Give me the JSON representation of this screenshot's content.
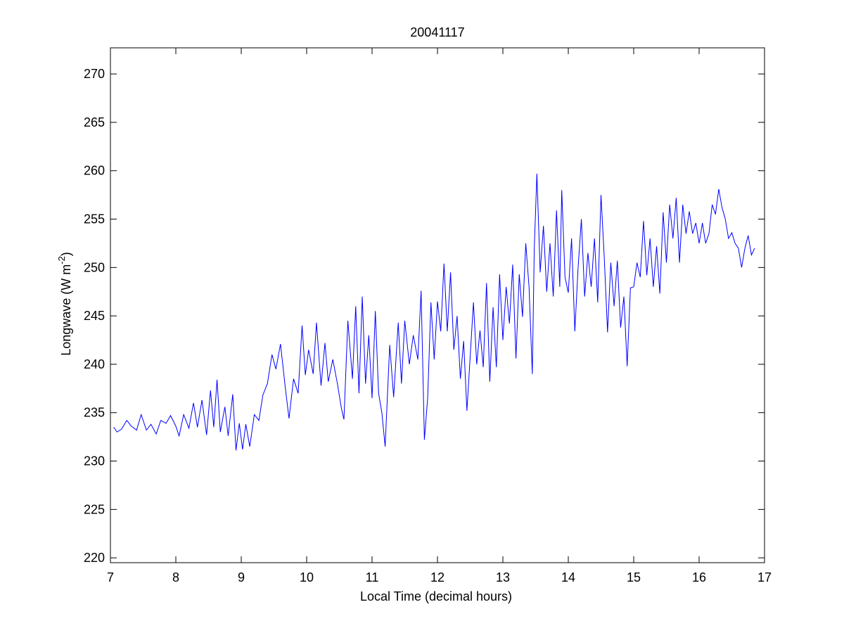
{
  "chart_data": {
    "type": "line",
    "title": "20041117",
    "xlabel": "Local Time (decimal hours)",
    "ylabel": [
      "Longwave (W m",
      "-2",
      ")"
    ],
    "xlim": [
      7,
      17
    ],
    "xticks": [
      7,
      8,
      9,
      10,
      11,
      12,
      13,
      14,
      15,
      16,
      17
    ],
    "ylim": [
      219.5,
      272.7
    ],
    "yticks": [
      220,
      225,
      230,
      235,
      240,
      245,
      250,
      255,
      260,
      265,
      270
    ],
    "grid": false,
    "series": [
      {
        "name": "Longwave",
        "color": "#0000ff",
        "x": [
          7.05,
          7.1,
          7.17,
          7.25,
          7.32,
          7.4,
          7.47,
          7.55,
          7.62,
          7.7,
          7.77,
          7.85,
          7.92,
          8.0,
          8.05,
          8.12,
          8.2,
          8.27,
          8.33,
          8.4,
          8.47,
          8.53,
          8.58,
          8.63,
          8.68,
          8.75,
          8.8,
          8.87,
          8.92,
          8.97,
          9.02,
          9.07,
          9.13,
          9.2,
          9.27,
          9.33,
          9.4,
          9.47,
          9.53,
          9.6,
          9.67,
          9.73,
          9.8,
          9.87,
          9.93,
          9.98,
          10.03,
          10.1,
          10.15,
          10.22,
          10.28,
          10.33,
          10.4,
          10.47,
          10.53,
          10.57,
          10.63,
          10.7,
          10.75,
          10.8,
          10.85,
          10.9,
          10.95,
          11.0,
          11.05,
          11.1,
          11.15,
          11.2,
          11.27,
          11.33,
          11.4,
          11.45,
          11.5,
          11.57,
          11.63,
          11.7,
          11.75,
          11.8,
          11.85,
          11.9,
          11.95,
          12.0,
          12.05,
          12.1,
          12.15,
          12.2,
          12.25,
          12.3,
          12.35,
          12.4,
          12.45,
          12.5,
          12.55,
          12.6,
          12.65,
          12.7,
          12.75,
          12.8,
          12.85,
          12.9,
          12.95,
          13.0,
          13.05,
          13.1,
          13.15,
          13.2,
          13.25,
          13.3,
          13.35,
          13.4,
          13.45,
          13.48,
          13.52,
          13.57,
          13.62,
          13.67,
          13.72,
          13.77,
          13.82,
          13.87,
          13.9,
          13.95,
          14.0,
          14.05,
          14.1,
          14.15,
          14.2,
          14.25,
          14.3,
          14.35,
          14.4,
          14.45,
          14.5,
          14.55,
          14.6,
          14.65,
          14.7,
          14.75,
          14.8,
          14.85,
          14.9,
          14.95,
          15.0,
          15.05,
          15.1,
          15.15,
          15.2,
          15.25,
          15.3,
          15.35,
          15.4,
          15.45,
          15.5,
          15.55,
          15.6,
          15.65,
          15.7,
          15.75,
          15.8,
          15.85,
          15.9,
          15.95,
          16.0,
          16.05,
          16.1,
          16.15,
          16.2,
          16.25,
          16.3,
          16.35,
          16.4,
          16.45,
          16.5,
          16.55,
          16.6,
          16.65,
          16.7,
          16.75,
          16.8,
          16.85
        ],
        "values": [
          233.5,
          233,
          233.3,
          234.2,
          233.6,
          233.2,
          234.8,
          233.2,
          233.8,
          232.8,
          234.2,
          233.9,
          234.7,
          233.6,
          232.6,
          234.8,
          233.4,
          236.0,
          233.5,
          236.3,
          232.7,
          237.3,
          233.5,
          238.4,
          233.0,
          235.6,
          232.6,
          236.9,
          231.1,
          233.9,
          231.2,
          233.8,
          231.5,
          234.8,
          234.2,
          236.8,
          238.0,
          241.0,
          239.5,
          242.1,
          237.8,
          234.4,
          238.5,
          237.0,
          244.0,
          238.9,
          241.5,
          239.0,
          244.3,
          237.8,
          242.2,
          238.2,
          240.5,
          238.0,
          235.5,
          234.3,
          244.5,
          238.5,
          246.0,
          237.0,
          247.0,
          238.0,
          243.0,
          236.5,
          245.5,
          237.0,
          235.0,
          231.5,
          242.0,
          236.6,
          244.3,
          238.0,
          244.5,
          240.0,
          243.0,
          240.5,
          247.6,
          232.2,
          236.5,
          246.4,
          240.5,
          246.5,
          243.4,
          250.4,
          243.4,
          249.5,
          241.5,
          245.0,
          238.5,
          242.4,
          235.2,
          240.8,
          246.4,
          240.0,
          243.5,
          239.7,
          248.4,
          238.2,
          245.9,
          239.7,
          249.3,
          242.5,
          248.0,
          244.2,
          250.3,
          240.6,
          249.3,
          244.9,
          252.5,
          248.0,
          239.0,
          252.0,
          259.7,
          249.5,
          254.3,
          247.5,
          252.5,
          247.0,
          255.9,
          248.0,
          258.0,
          249.0,
          247.4,
          253.0,
          243.4,
          250.0,
          255.0,
          247.0,
          251.5,
          248.0,
          253.0,
          246.4,
          257.5,
          251.0,
          243.3,
          250.5,
          246.0,
          250.7,
          243.8,
          247.0,
          239.8,
          247.9,
          248.0,
          250.5,
          249.0,
          254.8,
          249.2,
          253.0,
          248.0,
          252.2,
          247.3,
          255.7,
          250.5,
          256.5,
          253.0,
          257.2,
          250.5,
          256.5,
          253.5,
          255.8,
          253.5,
          254.6,
          252.5,
          254.6,
          252.5,
          253.5,
          256.5,
          255.5,
          258.1,
          256.2,
          255.0,
          253.0,
          253.6,
          252.5,
          252.0,
          250.0,
          252.0,
          253.3,
          251.3,
          252.0
        ]
      }
    ]
  }
}
